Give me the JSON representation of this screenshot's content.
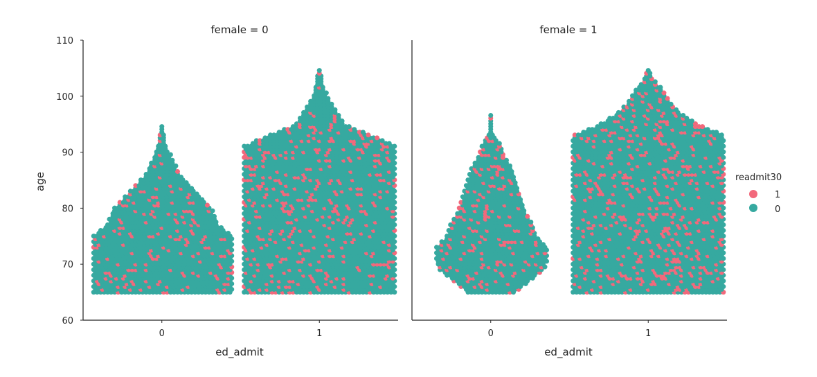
{
  "chart_data": {
    "type": "scatter",
    "subtype": "swarm",
    "ylabel": "age",
    "xlabel": "ed_admit",
    "ylim": [
      60,
      110
    ],
    "yticks": [
      60,
      70,
      80,
      90,
      100,
      110
    ],
    "x_categories": [
      "0",
      "1"
    ],
    "grid": false,
    "legend": {
      "title": "readmit30",
      "placement": "right",
      "entries": [
        {
          "label": "1",
          "color": "#f2697c"
        },
        {
          "label": "0",
          "color": "#36a9a0"
        }
      ]
    },
    "facets": [
      {
        "title": "female = 0",
        "groups": [
          {
            "category": "0",
            "profile": [
              [
                65,
                40
              ],
              [
                70,
                40
              ],
              [
                75,
                40
              ],
              [
                77,
                32
              ],
              [
                80,
                28
              ],
              [
                82,
                22
              ],
              [
                84,
                16
              ],
              [
                86,
                10
              ],
              [
                88,
                7
              ],
              [
                90,
                4
              ],
              [
                92,
                2
              ],
              [
                95,
                1
              ]
            ],
            "readmit_rate": 0.12
          },
          {
            "category": "1",
            "profile": [
              [
                65,
                44
              ],
              [
                75,
                44
              ],
              [
                85,
                44
              ],
              [
                89,
                44
              ],
              [
                91,
                44
              ],
              [
                93,
                30
              ],
              [
                95,
                14
              ],
              [
                97,
                10
              ],
              [
                99,
                6
              ],
              [
                101,
                3
              ],
              [
                105,
                1
              ]
            ],
            "readmit_rate": 0.14
          }
        ]
      },
      {
        "title": "female = 1",
        "groups": [
          {
            "category": "0",
            "profile": [
              [
                65,
                14
              ],
              [
                67,
                22
              ],
              [
                69,
                30
              ],
              [
                71,
                32
              ],
              [
                73,
                32
              ],
              [
                75,
                26
              ],
              [
                77,
                24
              ],
              [
                79,
                20
              ],
              [
                81,
                18
              ],
              [
                83,
                16
              ],
              [
                85,
                14
              ],
              [
                87,
                12
              ],
              [
                89,
                8
              ],
              [
                91,
                6
              ],
              [
                93,
                2
              ],
              [
                94,
                1
              ],
              [
                97,
                1
              ]
            ],
            "readmit_rate": 0.15
          },
          {
            "category": "1",
            "profile": [
              [
                65,
                44
              ],
              [
                75,
                44
              ],
              [
                85,
                44
              ],
              [
                91,
                44
              ],
              [
                93,
                44
              ],
              [
                95,
                28
              ],
              [
                97,
                18
              ],
              [
                99,
                12
              ],
              [
                101,
                8
              ],
              [
                103,
                3
              ],
              [
                105,
                1
              ]
            ],
            "readmit_rate": 0.16
          }
        ]
      }
    ]
  }
}
